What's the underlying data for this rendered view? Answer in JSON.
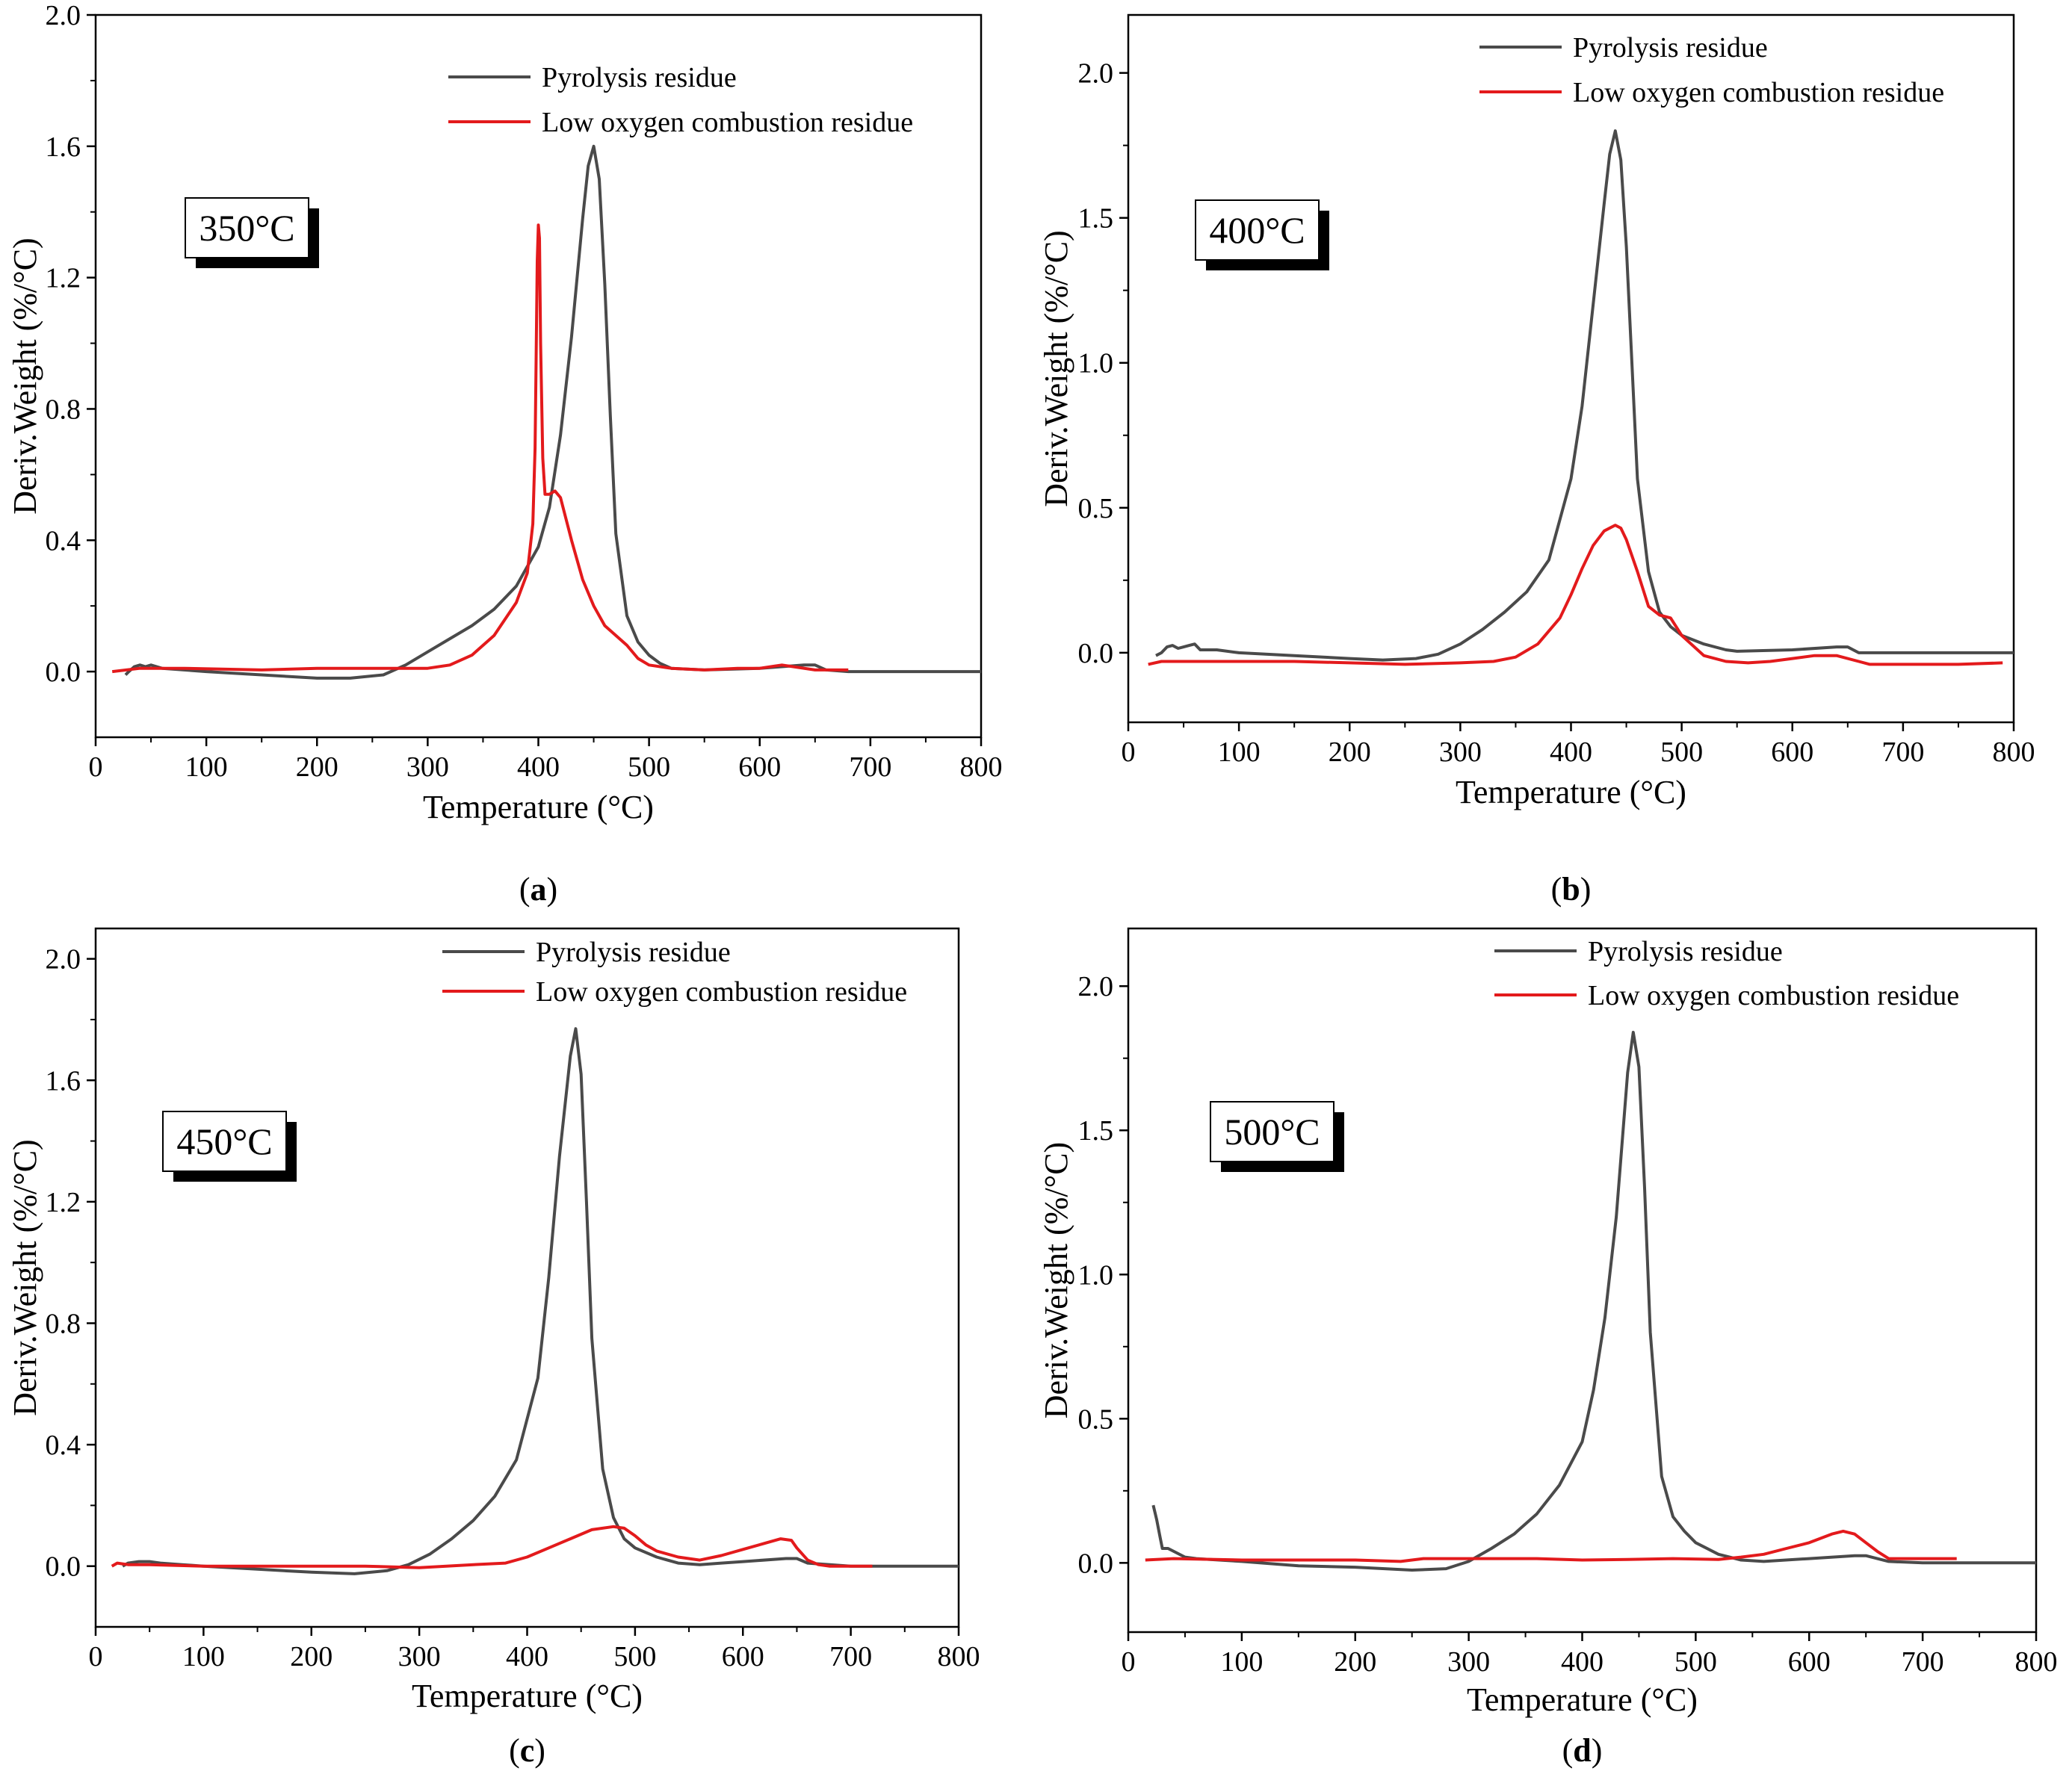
{
  "figure": {
    "panels_count": 4
  },
  "chart_data": [
    {
      "type": "line",
      "panel": "a",
      "caption_letter": "a",
      "temperature_tag": "350°C",
      "xlabel": "Temperature (°C)",
      "ylabel": "Deriv.Weight (%/°C)",
      "xlim": [
        0,
        800
      ],
      "ylim": [
        -0.2,
        2.0
      ],
      "xticks": [
        0,
        100,
        200,
        300,
        400,
        500,
        600,
        700,
        800
      ],
      "xtick_labels": [
        "0",
        "100",
        "200",
        "300",
        "400",
        "500",
        "600",
        "700",
        "800"
      ],
      "yticks": [
        0,
        0.4,
        0.8,
        1.2,
        1.6,
        2.0
      ],
      "ytick_labels": [
        "0.0",
        "0.4",
        "0.8",
        "1.2",
        "1.6",
        "2.0"
      ],
      "legend_position": "top-right",
      "series": [
        {
          "name": "Pyrolysis residue",
          "color": "#4a4a4a",
          "x": [
            27,
            30,
            35,
            40,
            45,
            50,
            60,
            80,
            100,
            150,
            200,
            230,
            260,
            280,
            300,
            320,
            340,
            360,
            380,
            400,
            410,
            420,
            430,
            440,
            445,
            450,
            455,
            460,
            465,
            470,
            480,
            490,
            500,
            510,
            520,
            550,
            600,
            640,
            650,
            660,
            680,
            700,
            750,
            800
          ],
          "y": [
            -0.01,
            0.0,
            0.015,
            0.02,
            0.015,
            0.02,
            0.01,
            0.005,
            0.0,
            -0.01,
            -0.02,
            -0.02,
            -0.01,
            0.02,
            0.06,
            0.1,
            0.14,
            0.19,
            0.26,
            0.38,
            0.5,
            0.72,
            1.02,
            1.38,
            1.54,
            1.6,
            1.5,
            1.18,
            0.78,
            0.42,
            0.17,
            0.09,
            0.05,
            0.025,
            0.01,
            0.005,
            0.01,
            0.02,
            0.02,
            0.005,
            0.0,
            0.0,
            0.0,
            0.0
          ]
        },
        {
          "name": "Low oxygen combustion residue",
          "color": "#e31a1c",
          "x": [
            15,
            40,
            80,
            150,
            200,
            250,
            300,
            320,
            340,
            360,
            380,
            390,
            395,
            397,
            398,
            399,
            400,
            401,
            402,
            404,
            406,
            410,
            415,
            420,
            430,
            440,
            450,
            460,
            470,
            480,
            490,
            500,
            520,
            550,
            580,
            600,
            620,
            650,
            680
          ],
          "y": [
            0.0,
            0.01,
            0.01,
            0.005,
            0.01,
            0.01,
            0.01,
            0.02,
            0.05,
            0.11,
            0.21,
            0.3,
            0.45,
            0.68,
            0.95,
            1.25,
            1.36,
            1.32,
            1.0,
            0.65,
            0.54,
            0.54,
            0.55,
            0.53,
            0.4,
            0.28,
            0.2,
            0.14,
            0.11,
            0.08,
            0.04,
            0.02,
            0.01,
            0.005,
            0.01,
            0.01,
            0.02,
            0.005,
            0.005
          ]
        }
      ]
    },
    {
      "type": "line",
      "panel": "b",
      "caption_letter": "b",
      "temperature_tag": "400°C",
      "xlabel": "Temperature (°C)",
      "ylabel": "Deriv.Weight (%/°C)",
      "xlim": [
        0,
        800
      ],
      "ylim": [
        -0.24,
        2.2
      ],
      "xticks": [
        0,
        100,
        200,
        300,
        400,
        500,
        600,
        700,
        800
      ],
      "xtick_labels": [
        "0",
        "100",
        "200",
        "300",
        "400",
        "500",
        "600",
        "700",
        "800"
      ],
      "yticks": [
        0,
        0.5,
        1.0,
        1.5,
        2.0
      ],
      "ytick_labels": [
        "0.0",
        "0.5",
        "1.0",
        "1.5",
        "2.0"
      ],
      "legend_position": "top-right",
      "series": [
        {
          "name": "Pyrolysis residue",
          "color": "#4a4a4a",
          "x": [
            25,
            30,
            35,
            40,
            45,
            50,
            55,
            60,
            65,
            70,
            80,
            100,
            150,
            200,
            230,
            260,
            280,
            300,
            320,
            340,
            360,
            380,
            400,
            410,
            420,
            430,
            435,
            440,
            445,
            450,
            455,
            460,
            470,
            480,
            490,
            500,
            520,
            540,
            550,
            600,
            640,
            650,
            660,
            700,
            800
          ],
          "y": [
            -0.01,
            0.0,
            0.02,
            0.025,
            0.015,
            0.02,
            0.025,
            0.03,
            0.01,
            0.01,
            0.01,
            0.0,
            -0.01,
            -0.02,
            -0.025,
            -0.02,
            -0.005,
            0.03,
            0.08,
            0.14,
            0.21,
            0.32,
            0.6,
            0.85,
            1.2,
            1.55,
            1.72,
            1.8,
            1.7,
            1.4,
            1.0,
            0.6,
            0.28,
            0.14,
            0.09,
            0.06,
            0.03,
            0.01,
            0.005,
            0.01,
            0.02,
            0.02,
            0.0,
            0.0,
            0.0
          ]
        },
        {
          "name": "Low oxygen combustion residue",
          "color": "#e31a1c",
          "x": [
            18,
            30,
            50,
            100,
            150,
            200,
            250,
            300,
            330,
            350,
            370,
            390,
            400,
            410,
            420,
            430,
            440,
            445,
            450,
            460,
            470,
            480,
            490,
            500,
            520,
            540,
            560,
            580,
            600,
            620,
            640,
            660,
            670,
            700,
            750,
            790
          ],
          "y": [
            -0.04,
            -0.03,
            -0.03,
            -0.03,
            -0.03,
            -0.035,
            -0.04,
            -0.035,
            -0.03,
            -0.015,
            0.03,
            0.12,
            0.2,
            0.29,
            0.37,
            0.42,
            0.44,
            0.43,
            0.39,
            0.28,
            0.16,
            0.13,
            0.12,
            0.06,
            -0.01,
            -0.03,
            -0.035,
            -0.03,
            -0.02,
            -0.01,
            -0.01,
            -0.03,
            -0.04,
            -0.04,
            -0.04,
            -0.035
          ]
        }
      ]
    },
    {
      "type": "line",
      "panel": "c",
      "caption_letter": "c",
      "temperature_tag": "450°C",
      "xlabel": "Temperature (°C)",
      "ylabel": "Deriv.Weight (%/°C)",
      "xlim": [
        0,
        800
      ],
      "ylim": [
        -0.2,
        2.1
      ],
      "xticks": [
        0,
        100,
        200,
        300,
        400,
        500,
        600,
        700,
        800
      ],
      "xtick_labels": [
        "0",
        "100",
        "200",
        "300",
        "400",
        "500",
        "600",
        "700",
        "800"
      ],
      "yticks": [
        0,
        0.4,
        0.8,
        1.2,
        1.6,
        2.0
      ],
      "ytick_labels": [
        "0.0",
        "0.4",
        "0.8",
        "1.2",
        "1.6",
        "2.0"
      ],
      "legend_position": "top-right",
      "series": [
        {
          "name": "Pyrolysis residue",
          "color": "#4a4a4a",
          "x": [
            25,
            30,
            40,
            50,
            60,
            80,
            100,
            150,
            200,
            240,
            270,
            290,
            310,
            330,
            350,
            370,
            390,
            410,
            420,
            430,
            440,
            445,
            450,
            455,
            460,
            470,
            480,
            490,
            500,
            520,
            540,
            560,
            580,
            600,
            640,
            650,
            660,
            700,
            800
          ],
          "y": [
            0.0,
            0.01,
            0.015,
            0.015,
            0.01,
            0.005,
            0.0,
            -0.01,
            -0.02,
            -0.025,
            -0.015,
            0.005,
            0.04,
            0.09,
            0.15,
            0.23,
            0.35,
            0.62,
            0.95,
            1.35,
            1.68,
            1.77,
            1.62,
            1.2,
            0.75,
            0.32,
            0.16,
            0.09,
            0.06,
            0.03,
            0.01,
            0.005,
            0.01,
            0.015,
            0.025,
            0.025,
            0.01,
            0.0,
            0.0
          ]
        },
        {
          "name": "Low oxygen combustion residue",
          "color": "#e31a1c",
          "x": [
            15,
            20,
            30,
            50,
            100,
            150,
            200,
            250,
            300,
            350,
            380,
            400,
            420,
            440,
            460,
            480,
            490,
            500,
            510,
            520,
            540,
            560,
            580,
            600,
            620,
            635,
            645,
            650,
            660,
            670,
            680,
            700,
            720
          ],
          "y": [
            0.0,
            0.01,
            0.005,
            0.005,
            0.0,
            0.0,
            0.0,
            0.0,
            -0.005,
            0.005,
            0.01,
            0.03,
            0.06,
            0.09,
            0.12,
            0.13,
            0.125,
            0.1,
            0.07,
            0.05,
            0.03,
            0.02,
            0.035,
            0.055,
            0.075,
            0.09,
            0.085,
            0.06,
            0.02,
            0.005,
            0.0,
            0.0,
            0.0
          ]
        }
      ]
    },
    {
      "type": "line",
      "panel": "d",
      "caption_letter": "d",
      "temperature_tag": "500°C",
      "xlabel": "Temperature (°C)",
      "ylabel": "Deriv.Weight (%/°C)",
      "xlim": [
        0,
        800
      ],
      "ylim": [
        -0.24,
        2.2
      ],
      "xticks": [
        0,
        100,
        200,
        300,
        400,
        500,
        600,
        700,
        800
      ],
      "xtick_labels": [
        "0",
        "100",
        "200",
        "300",
        "400",
        "500",
        "600",
        "700",
        "800"
      ],
      "yticks": [
        0,
        0.5,
        1.0,
        1.5,
        2.0
      ],
      "ytick_labels": [
        "0.0",
        "0.5",
        "1.0",
        "1.5",
        "2.0"
      ],
      "legend_position": "top-right",
      "series": [
        {
          "name": "Pyrolysis residue",
          "color": "#4a4a4a",
          "x": [
            22,
            25,
            28,
            30,
            35,
            40,
            50,
            60,
            80,
            100,
            150,
            200,
            250,
            280,
            300,
            320,
            340,
            360,
            380,
            400,
            410,
            420,
            430,
            435,
            440,
            445,
            450,
            455,
            460,
            470,
            480,
            490,
            500,
            520,
            540,
            560,
            600,
            640,
            650,
            670,
            700,
            800
          ],
          "y": [
            0.2,
            0.15,
            0.09,
            0.05,
            0.05,
            0.04,
            0.02,
            0.015,
            0.01,
            0.005,
            -0.01,
            -0.015,
            -0.025,
            -0.02,
            0.005,
            0.05,
            0.1,
            0.17,
            0.27,
            0.42,
            0.6,
            0.85,
            1.2,
            1.45,
            1.7,
            1.84,
            1.72,
            1.3,
            0.8,
            0.3,
            0.16,
            0.11,
            0.07,
            0.03,
            0.01,
            0.005,
            0.015,
            0.025,
            0.025,
            0.005,
            0.0,
            0.0
          ]
        },
        {
          "name": "Low oxygen combustion residue",
          "color": "#e31a1c",
          "x": [
            15,
            40,
            100,
            150,
            200,
            240,
            260,
            300,
            360,
            400,
            440,
            480,
            520,
            540,
            560,
            580,
            600,
            620,
            630,
            640,
            650,
            660,
            670,
            700,
            730
          ],
          "y": [
            0.01,
            0.015,
            0.01,
            0.01,
            0.01,
            0.005,
            0.015,
            0.015,
            0.015,
            0.01,
            0.012,
            0.015,
            0.012,
            0.02,
            0.03,
            0.05,
            0.07,
            0.1,
            0.11,
            0.1,
            0.07,
            0.04,
            0.015,
            0.015,
            0.015
          ]
        }
      ]
    }
  ]
}
